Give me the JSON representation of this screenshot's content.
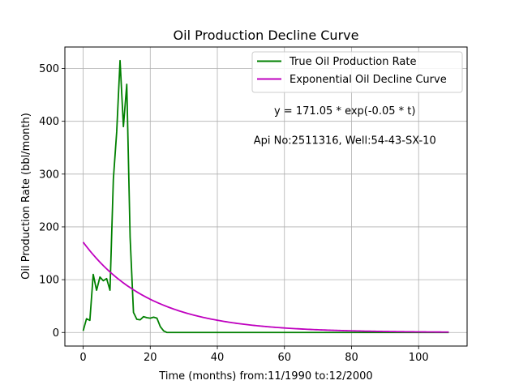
{
  "chart_data": {
    "type": "line",
    "title": "Oil Production Decline Curve",
    "xlabel": "Time (months) from:11/1990 to:12/2000",
    "ylabel": "Oil Production Rate (bbl/month)",
    "xlim": [
      -5.45,
      114.45
    ],
    "ylim": [
      -25.7,
      540.7
    ],
    "xticks": [
      0,
      20,
      40,
      60,
      80,
      100
    ],
    "yticks": [
      0,
      100,
      200,
      300,
      400,
      500
    ],
    "grid": true,
    "legend_placement": "top-right",
    "annotations": [
      {
        "text": "y = 171.05 * exp(-0.05 * t)",
        "x": 78,
        "y": 420
      },
      {
        "text": "Api No:2511316, Well:54-43-SX-10",
        "x": 78,
        "y": 364
      }
    ],
    "series": [
      {
        "name": "True Oil Production Rate",
        "color": "#008000",
        "x": [
          0,
          1,
          2,
          3,
          4,
          5,
          6,
          7,
          8,
          9,
          10,
          11,
          12,
          13,
          14,
          15,
          16,
          17,
          18,
          19,
          20,
          21,
          22,
          23,
          24,
          25,
          26,
          30,
          40,
          50,
          60,
          70,
          80,
          90,
          100,
          109
        ],
        "y": [
          3,
          26,
          23,
          110,
          80,
          105,
          98,
          102,
          80,
          290,
          380,
          515,
          390,
          470,
          180,
          38,
          25,
          24,
          30,
          28,
          27,
          29,
          27,
          11,
          3,
          0,
          0,
          0,
          0,
          0,
          0,
          0,
          0,
          0,
          0,
          0
        ]
      },
      {
        "name": "Exponential Oil Decline Curve",
        "color": "#bf00bf",
        "type": "function",
        "a": 171.05,
        "b": 0.05,
        "x_range": [
          0,
          109
        ]
      }
    ]
  }
}
